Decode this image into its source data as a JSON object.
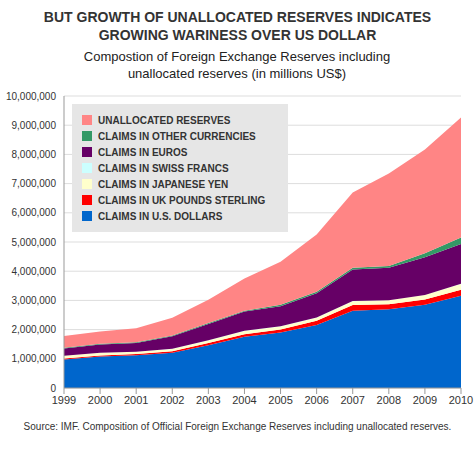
{
  "chart_data": {
    "type": "area",
    "title": "BUT GROWTH OF UNALLOCATED RESERVES INDICATES GROWING WARINESS OVER US DOLLAR",
    "subtitle": "Compostion of Foreign Exchange Reserves including unallocated reserves (in millions US$)",
    "source": "Source: IMF. Composition of Official Foreign Exchange Reserves including unallocated reserves.",
    "stacked": true,
    "grid": true,
    "legend": "upper left",
    "categories": [
      "1999",
      "2000",
      "2001",
      "2002",
      "2003",
      "2004",
      "2005",
      "2006",
      "2007",
      "2008",
      "2009",
      "2010"
    ],
    "ylim": [
      0,
      10000000
    ],
    "yticks": [
      {
        "value": 0,
        "label": "0"
      },
      {
        "value": 1000000,
        "label": "1,000,000"
      },
      {
        "value": 2000000,
        "label": "2,000,000"
      },
      {
        "value": 3000000,
        "label": "3,000,000"
      },
      {
        "value": 4000000,
        "label": "4,000,000"
      },
      {
        "value": 5000000,
        "label": "5,000,000"
      },
      {
        "value": 6000000,
        "label": "6,000,000"
      },
      {
        "value": 7000000,
        "label": "7,000,000"
      },
      {
        "value": 8000000,
        "label": "8,000,000"
      },
      {
        "value": 9000000,
        "label": "9,000,000"
      },
      {
        "value": 10000000,
        "label": "10,000,000"
      }
    ],
    "series": [
      {
        "name": "CLAIMS IN U.S. DOLLARS",
        "color": "#0066cc",
        "values": [
          978000,
          1077000,
          1122000,
          1205000,
          1465000,
          1751000,
          1903000,
          2159000,
          2643000,
          2698000,
          2849000,
          3159000
        ]
      },
      {
        "name": "CLAIMS IN UK POUNDS STERLING",
        "color": "#ff0000",
        "values": [
          36000,
          38000,
          39000,
          52000,
          76000,
          94000,
          103000,
          147000,
          199000,
          168000,
          178000,
          203000
        ]
      },
      {
        "name": "CLAIMS IN JAPANESE YEN",
        "color": "#ffffcc",
        "values": [
          88000,
          92000,
          79000,
          80000,
          88000,
          107000,
          102000,
          100000,
          129000,
          136000,
          156000,
          201000
        ]
      },
      {
        "name": "CLAIMS IN SWISS FRANCS",
        "color": "#ccffff",
        "values": [
          4000,
          4000,
          4000,
          7000,
          5000,
          5000,
          5000,
          6000,
          6000,
          6000,
          5000,
          6000
        ]
      },
      {
        "name": "CLAIMS IN EUROS",
        "color": "#660066",
        "values": [
          246000,
          278000,
          301000,
          428000,
          559000,
          659000,
          684000,
          832000,
          1082000,
          1112000,
          1288000,
          1359000
        ]
      },
      {
        "name": "CLAIMS IN OTHER CURRENCIES",
        "color": "#339966",
        "values": [
          24000,
          24000,
          24000,
          25000,
          33000,
          32000,
          54000,
          56000,
          62000,
          61000,
          143000,
          222000
        ]
      },
      {
        "name": "UNALLOCATED RESERVES",
        "color": "#ff8585",
        "values": [
          406000,
          423000,
          481000,
          611000,
          799000,
          1100000,
          1469000,
          1954000,
          2578000,
          3165000,
          3546000,
          4115000
        ]
      }
    ]
  }
}
